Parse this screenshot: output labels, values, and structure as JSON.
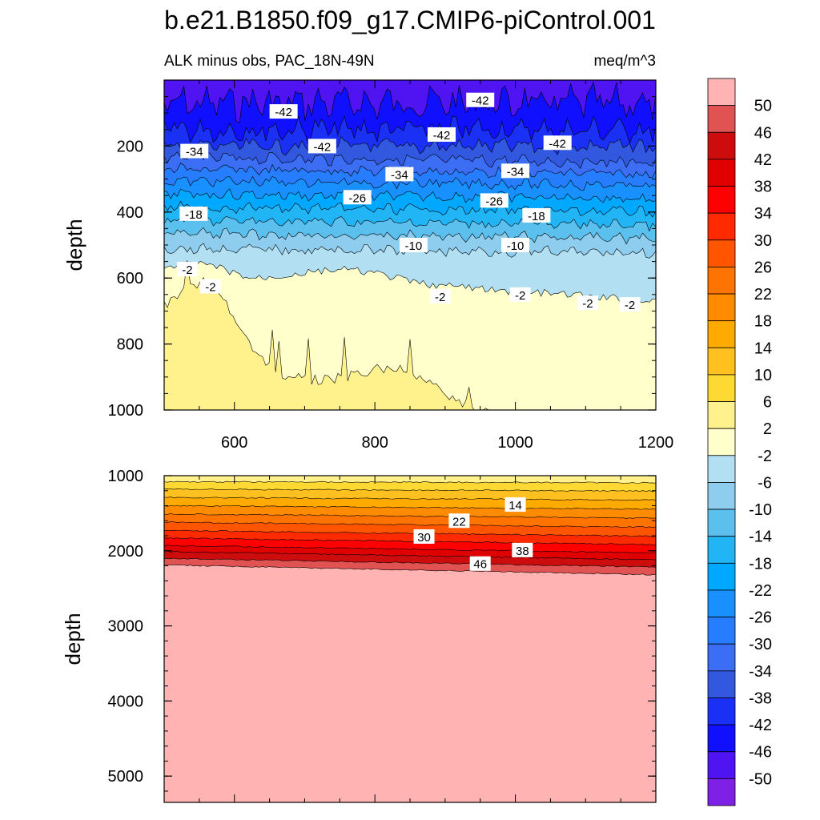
{
  "chart_data": {
    "type": "contour",
    "title": "b.e21.B1850.f09_g17.CMIP6-piControl.001",
    "subtitle_left": "ALK minus obs, PAC_18N-49N",
    "subtitle_right": "meq/m^3",
    "xrange": [
      500,
      1200
    ],
    "xticks": [
      "600",
      "800",
      "1000",
      "1200"
    ],
    "xtick_values": [
      600,
      800,
      1000,
      1200
    ],
    "top_panel": {
      "ylabel": "depth",
      "yrange": [
        0,
        1000
      ],
      "yticks": [
        "200",
        "400",
        "600",
        "800",
        "1000"
      ],
      "ytick_values": [
        200,
        400,
        600,
        800,
        1000
      ],
      "contour_labels": [
        {
          "text": "-42",
          "x": 670,
          "depth": 95
        },
        {
          "text": "-42",
          "x": 725,
          "depth": 200
        },
        {
          "text": "-42",
          "x": 895,
          "depth": 165
        },
        {
          "text": "-42",
          "x": 950,
          "depth": 60
        },
        {
          "text": "-42",
          "x": 1060,
          "depth": 190
        },
        {
          "text": "-34",
          "x": 543,
          "depth": 215
        },
        {
          "text": "-34",
          "x": 835,
          "depth": 285
        },
        {
          "text": "-34",
          "x": 1000,
          "depth": 275
        },
        {
          "text": "-26",
          "x": 775,
          "depth": 355
        },
        {
          "text": "-26",
          "x": 970,
          "depth": 365
        },
        {
          "text": "-18",
          "x": 542,
          "depth": 405
        },
        {
          "text": "-18",
          "x": 1030,
          "depth": 410
        },
        {
          "text": "-10",
          "x": 855,
          "depth": 500
        },
        {
          "text": "-10",
          "x": 1000,
          "depth": 500
        },
        {
          "text": "-2",
          "x": 533,
          "depth": 573
        },
        {
          "text": "-2",
          "x": 566,
          "depth": 625
        },
        {
          "text": "-2",
          "x": 893,
          "depth": 655
        },
        {
          "text": "-2",
          "x": 1007,
          "depth": 650
        },
        {
          "text": "-2",
          "x": 1103,
          "depth": 675
        },
        {
          "text": "-2",
          "x": 1163,
          "depth": 680
        }
      ]
    },
    "bottom_panel": {
      "ylabel": "depth",
      "yrange": [
        1000,
        5350
      ],
      "yticks": [
        "1000",
        "2000",
        "3000",
        "4000",
        "5000"
      ],
      "ytick_values": [
        1000,
        2000,
        3000,
        4000,
        5000
      ],
      "contour_labels": [
        {
          "text": "14",
          "x": 1000,
          "depth": 1385
        },
        {
          "text": "22",
          "x": 920,
          "depth": 1600
        },
        {
          "text": "30",
          "x": 870,
          "depth": 1810
        },
        {
          "text": "38",
          "x": 1010,
          "depth": 1990
        },
        {
          "text": "46",
          "x": 950,
          "depth": 2170
        }
      ]
    },
    "colorbar": {
      "labels": [
        "50",
        "46",
        "42",
        "38",
        "34",
        "30",
        "26",
        "22",
        "18",
        "14",
        "10",
        "6",
        "2",
        "-2",
        "-6",
        "-10",
        "-14",
        "-18",
        "-22",
        "-26",
        "-30",
        "-34",
        "-38",
        "-42",
        "-46",
        "-50"
      ],
      "colors": [
        "#ffb3b3",
        "#e15353",
        "#cd0d0d",
        "#e10000",
        "#ff0000",
        "#ff2a00",
        "#ff5500",
        "#ff7300",
        "#ff8c00",
        "#ffaa00",
        "#ffc020",
        "#ffd933",
        "#fff28c",
        "#ffffcc",
        "#b3dff2",
        "#8ecdee",
        "#5cc0ef",
        "#22b5f6",
        "#00a8ff",
        "#1890ff",
        "#267dff",
        "#3b6ef5",
        "#3358e0",
        "#1a30f5",
        "#1010ff",
        "#5014f2",
        "#7f20e6"
      ]
    },
    "profiles": {
      "x": [
        500,
        520,
        540,
        560,
        580,
        600,
        620,
        640,
        660,
        680,
        700,
        720,
        740,
        760,
        780,
        800,
        820,
        840,
        860,
        880,
        900,
        920,
        940,
        960,
        980,
        1000,
        1020,
        1040,
        1060,
        1080,
        1100,
        1120,
        1140,
        1160,
        1180,
        1200
      ],
      "boundary_2_to_6": [
        690,
        650,
        620,
        610,
        640,
        720,
        790,
        850,
        890,
        900,
        905,
        910,
        905,
        900,
        890,
        880,
        870,
        880,
        900,
        920,
        950,
        980,
        995,
        1000,
        1000,
        1000,
        1000,
        1000,
        1000,
        1000,
        1000,
        1000,
        1000,
        1000,
        1000,
        1000
      ],
      "boundary_neg2_to_2": [
        575,
        570,
        560,
        560,
        570,
        585,
        600,
        600,
        595,
        590,
        585,
        580,
        575,
        575,
        580,
        585,
        595,
        605,
        615,
        620,
        625,
        625,
        630,
        635,
        640,
        640,
        645,
        645,
        650,
        650,
        655,
        660,
        660,
        665,
        665,
        670
      ]
    }
  }
}
